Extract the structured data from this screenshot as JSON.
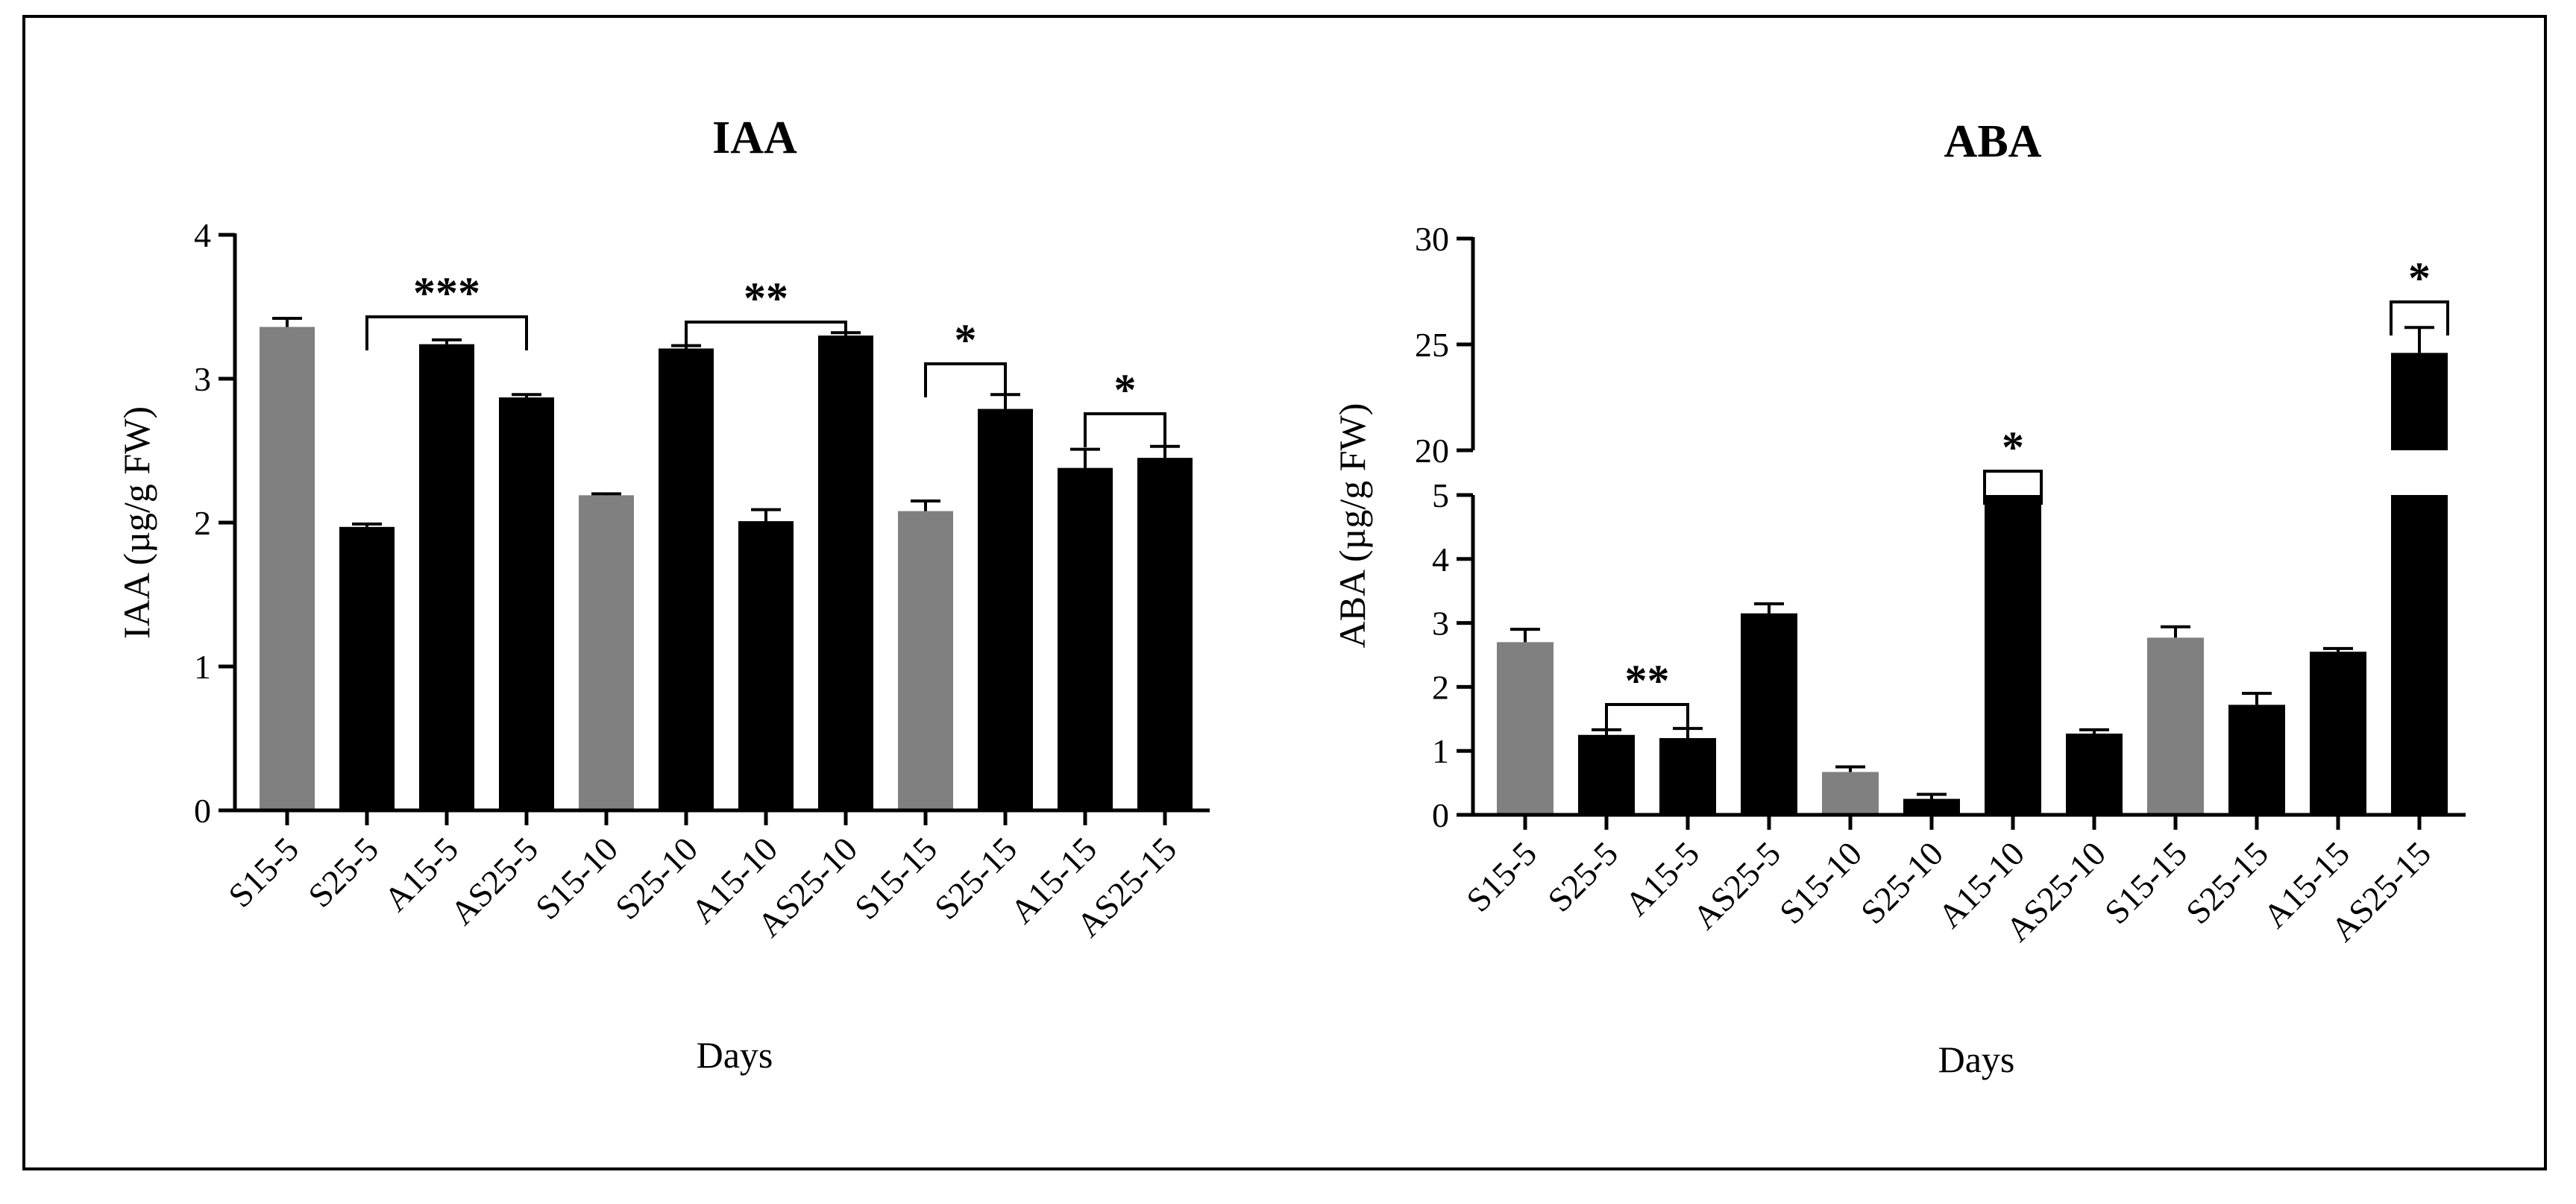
{
  "colors": {
    "control": "#808080",
    "treated": "#000000"
  },
  "chart_data": [
    {
      "type": "bar",
      "title": "IAA",
      "xlabel": "Days",
      "ylabel": "IAA (µg/g FW)",
      "ylim": [
        0,
        4
      ],
      "yticks": [
        "0",
        "1",
        "2",
        "3",
        "4"
      ],
      "categories": [
        "S15-5",
        "S25-5",
        "A15-5",
        "AS25-5",
        "S15-10",
        "S25-10",
        "A15-10",
        "AS25-10",
        "S15-15",
        "S25-15",
        "A15-15",
        "AS25-15"
      ],
      "values": [
        3.36,
        1.97,
        3.24,
        2.87,
        2.19,
        3.21,
        2.01,
        3.3,
        2.08,
        2.79,
        2.38,
        2.45
      ],
      "errors": [
        0.06,
        0.02,
        0.03,
        0.02,
        0.01,
        0.02,
        0.08,
        0.02,
        0.07,
        0.1,
        0.13,
        0.08
      ],
      "groups": [
        "control",
        "treated",
        "treated",
        "treated",
        "control",
        "treated",
        "treated",
        "treated",
        "control",
        "treated",
        "treated",
        "treated"
      ],
      "significance": [
        {
          "from": 1,
          "to": 3,
          "label": "***"
        },
        {
          "from": 5,
          "to": 7,
          "label": "**"
        },
        {
          "from": 8,
          "to": 9,
          "label": "*"
        },
        {
          "from": 10,
          "to": 11,
          "label": "*"
        }
      ]
    },
    {
      "type": "bar",
      "title": "ABA",
      "xlabel": "Days",
      "ylabel": "ABA (µg/g FW)",
      "ylim": [
        0,
        30
      ],
      "axis_break": [
        5,
        20
      ],
      "yticks_lower": [
        "0",
        "1",
        "2",
        "3",
        "4",
        "5"
      ],
      "yticks_upper": [
        "20",
        "25",
        "30"
      ],
      "categories": [
        "S15-5",
        "S25-5",
        "A15-5",
        "AS25-5",
        "S15-10",
        "S25-10",
        "A15-10",
        "AS25-10",
        "S15-15",
        "S25-15",
        "A15-15",
        "AS25-15"
      ],
      "values": [
        2.7,
        1.25,
        1.2,
        3.15,
        0.67,
        0.25,
        5,
        1.27,
        2.77,
        1.72,
        2.55,
        24.6
      ],
      "errors": [
        0.2,
        0.08,
        0.15,
        0.15,
        0.08,
        0.07,
        0,
        0.06,
        0.17,
        0.18,
        0.05,
        1.2
      ],
      "groups": [
        "control",
        "treated",
        "treated",
        "treated",
        "control",
        "treated",
        "treated",
        "treated",
        "control",
        "treated",
        "treated",
        "treated"
      ],
      "significance": [
        {
          "from": 1,
          "to": 2,
          "label": "**"
        },
        {
          "from": 6,
          "to": 6,
          "label": "*"
        },
        {
          "from": 11,
          "to": 11,
          "label": "*"
        }
      ]
    }
  ]
}
